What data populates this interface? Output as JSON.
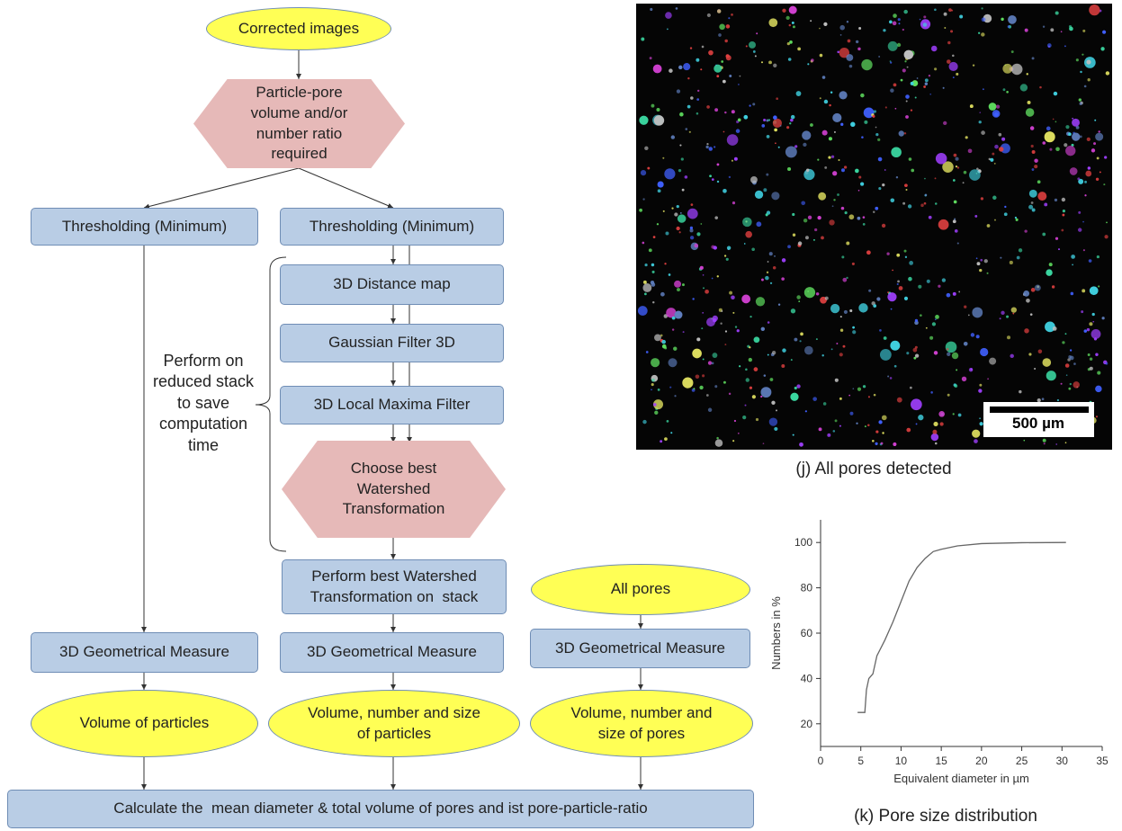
{
  "nodes": [
    "Corrected images",
    "Particle-pore volume and/or number ratio required",
    "Thresholding (Minimum)",
    "Thresholding (Minimum)",
    "3D Distance map",
    "Gaussian Filter 3D",
    "3D Local Maxima Filter",
    "Choose best Watershed Transformation",
    "Perform best Watershed Transformation on  stack",
    "All pores",
    "3D Geometrical Measure",
    "3D Geometrical Measure",
    "3D Geometrical Measure",
    "Volume of particles",
    "Volume, number and size of particles",
    "Volume, number and size of pores",
    "Calculate the  mean diameter & total volume of pores and ist pore-particle-ratio"
  ],
  "annotation": "Perform on reduced stack to save computation time",
  "image": {
    "scale_bar": "500 µm",
    "caption": "(j) All pores detected"
  },
  "chart_data": {
    "type": "line",
    "caption": "(k) Pore size distribution",
    "x_label": "Equivalent diameter in µm",
    "y_label": "Numbers in %",
    "x": [
      4.6,
      5.5,
      5.7,
      6,
      6.5,
      7,
      8,
      9,
      10,
      11,
      12,
      13,
      14,
      15,
      17,
      20,
      25,
      30.5
    ],
    "values": [
      25,
      25,
      35,
      40,
      42,
      50,
      57,
      65,
      74,
      83,
      89,
      93,
      96,
      97,
      98.5,
      99.5,
      99.9,
      100
    ],
    "color": "#666666",
    "xlim": [
      0,
      35
    ],
    "xticks": [
      0,
      5,
      10,
      15,
      20,
      25,
      30,
      35
    ],
    "ylim": [
      10,
      110
    ],
    "yticks": [
      20,
      40,
      60,
      80,
      100
    ]
  }
}
